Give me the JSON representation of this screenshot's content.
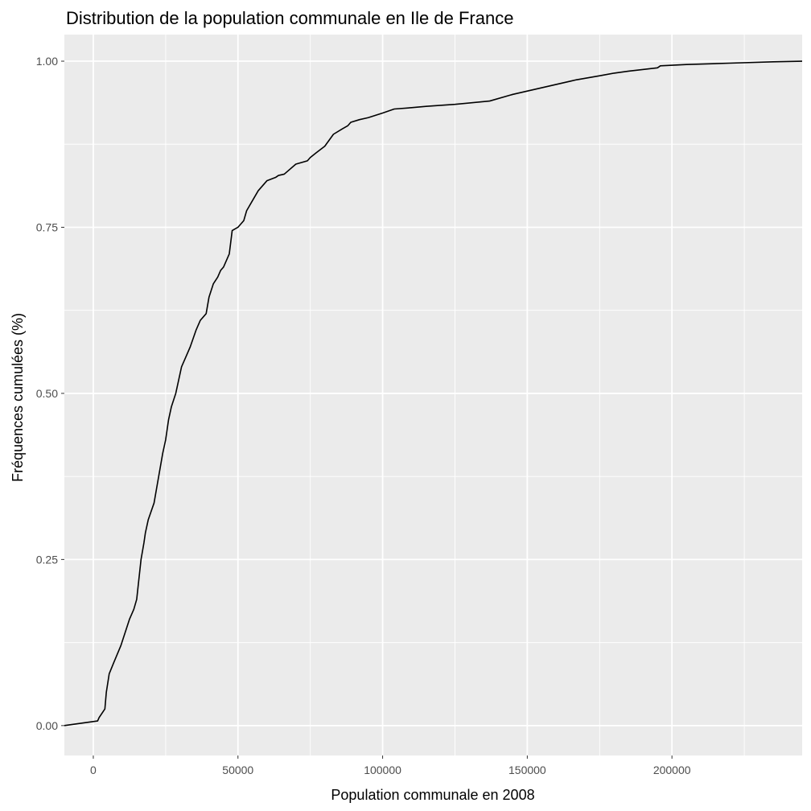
{
  "chart_data": {
    "type": "line",
    "title": "Distribution de la population communale en Ile de France",
    "xlabel": "Population communale en 2008",
    "ylabel": "Fréquences cumulées (%)",
    "xlim": [
      -10000,
      245000
    ],
    "ylim": [
      -0.045,
      1.04
    ],
    "x_ticks": [
      0,
      50000,
      100000,
      150000,
      200000
    ],
    "x_tick_labels": [
      "0",
      "50000",
      "100000",
      "150000",
      "200000"
    ],
    "y_ticks": [
      0,
      0.25,
      0.5,
      0.75,
      1
    ],
    "y_tick_labels": [
      "0.00",
      "0.25",
      "0.50",
      "0.75",
      "1.00"
    ],
    "grid": true,
    "background": "#ebebeb",
    "grid_color": "#ffffff",
    "line_color": "#000000",
    "series": [
      {
        "x": [
          -10000,
          1500,
          2000,
          4000,
          4500,
          5500,
          7000,
          9500,
          11000,
          12500,
          14000,
          15000,
          16500,
          17500,
          18000,
          19000,
          21000,
          22000,
          23000,
          24000,
          25000,
          26000,
          27000,
          28500,
          29500,
          30500,
          32000,
          33500,
          35500,
          37000,
          39000,
          40000,
          41500,
          43000,
          44000,
          45000,
          47000,
          48000,
          50000,
          52000,
          53000,
          55000,
          57000,
          60000,
          63000,
          64000,
          66000,
          70000,
          74000,
          75000,
          77000,
          80000,
          83000,
          86000,
          88000,
          89000,
          92000,
          95000,
          100000,
          104000,
          110000,
          115000,
          125000,
          137000,
          145000,
          155000,
          165000,
          167000,
          175000,
          180000,
          185000,
          195000,
          196000,
          205000,
          220000,
          235000,
          245000
        ],
        "y": [
          0.0,
          0.007,
          0.012,
          0.025,
          0.05,
          0.078,
          0.094,
          0.12,
          0.14,
          0.16,
          0.175,
          0.19,
          0.25,
          0.275,
          0.29,
          0.31,
          0.335,
          0.36,
          0.385,
          0.41,
          0.43,
          0.46,
          0.48,
          0.5,
          0.52,
          0.54,
          0.555,
          0.57,
          0.595,
          0.61,
          0.62,
          0.645,
          0.665,
          0.675,
          0.685,
          0.69,
          0.71,
          0.745,
          0.75,
          0.76,
          0.775,
          0.79,
          0.805,
          0.82,
          0.825,
          0.828,
          0.83,
          0.845,
          0.85,
          0.855,
          0.862,
          0.872,
          0.89,
          0.898,
          0.903,
          0.908,
          0.912,
          0.915,
          0.922,
          0.928,
          0.93,
          0.932,
          0.935,
          0.94,
          0.95,
          0.96,
          0.97,
          0.972,
          0.978,
          0.982,
          0.985,
          0.99,
          0.993,
          0.995,
          0.997,
          0.999,
          1.0
        ]
      }
    ]
  }
}
